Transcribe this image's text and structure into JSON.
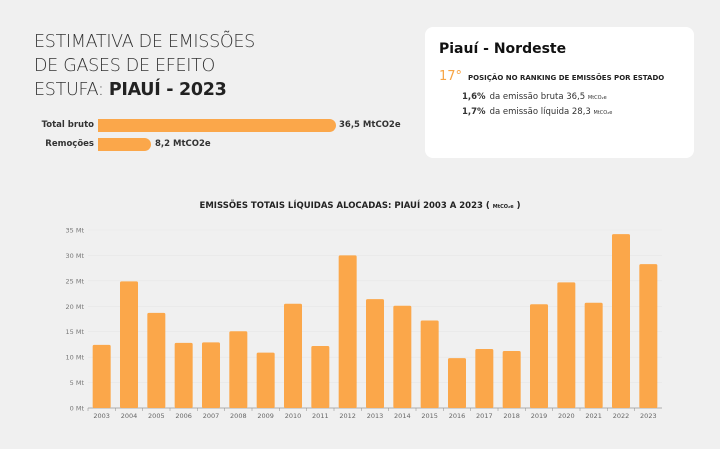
{
  "header": {
    "title_line1": "ESTIMATIVA DE EMISSÕES",
    "title_line2": "DE GASES DE EFEITO",
    "title_line3_prefix": "ESTUFA: ",
    "title_line3_bold": "PIAUÍ - 2023"
  },
  "summary_bars": [
    {
      "label": "Total bruto",
      "value": 36.5,
      "value_label": "36,5 MtCO2e"
    },
    {
      "label": "Remoções",
      "value": 8.2,
      "value_label": "8,2 MtCO2e"
    }
  ],
  "card": {
    "title": "Piauí - Nordeste",
    "rank": "17°",
    "rank_text": "POSIÇÃO NO RANKING DE EMISSÕES POR ESTADO",
    "stats": [
      {
        "pct": "1,6%",
        "text": "da emissão bruta 36,5",
        "unit": "MtCO₂e"
      },
      {
        "pct": "1,7%",
        "text": "da emissão líquida 28,3",
        "unit": "MtCO₂e"
      }
    ]
  },
  "colors": {
    "bar": "#fba74a",
    "rank": "#f7a545"
  },
  "chart_data": {
    "type": "bar",
    "title": "EMISSÕES TOTAIS LÍQUIDAS ALOCADAS: PIAUÍ 2003 A 2023 (",
    "title_unit": "MtCO₂e",
    "title_end": ")",
    "categories": [
      "2003",
      "2004",
      "2005",
      "2006",
      "2007",
      "2008",
      "2009",
      "2010",
      "2011",
      "2012",
      "2013",
      "2014",
      "2015",
      "2016",
      "2017",
      "2018",
      "2019",
      "2020",
      "2021",
      "2022",
      "2023"
    ],
    "values": [
      12.4,
      24.9,
      18.7,
      12.8,
      12.9,
      15.1,
      10.9,
      20.5,
      12.2,
      30.0,
      21.4,
      20.1,
      17.2,
      9.8,
      11.6,
      11.2,
      20.4,
      24.7,
      20.7,
      34.2,
      28.3
    ],
    "yticks": [
      "0 Mt",
      "5 Mt",
      "10 Mt",
      "15 Mt",
      "20 Mt",
      "25 Mt",
      "30 Mt",
      "35 Mt"
    ],
    "ylim": [
      0,
      35
    ],
    "grid": true
  }
}
